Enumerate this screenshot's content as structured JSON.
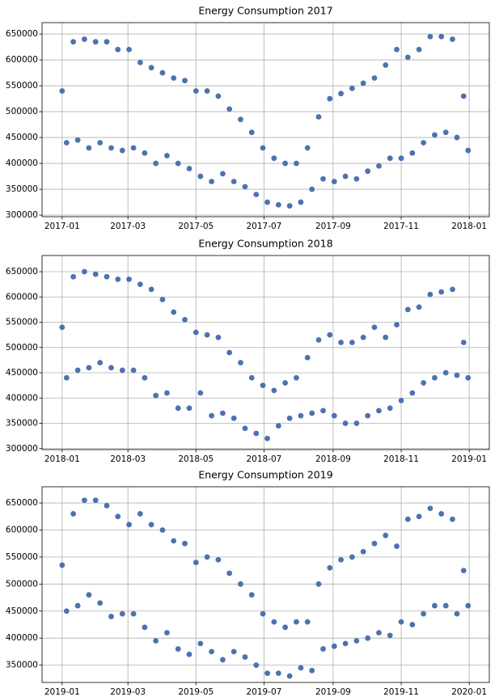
{
  "chart_data": [
    {
      "type": "scatter",
      "title": "Energy Consumption 2017",
      "grid": true,
      "xlim": [
        -18,
        383
      ],
      "ylim": [
        297000,
        672000
      ],
      "xticks": [
        {
          "value": 0,
          "label": "2017-01"
        },
        {
          "value": 59,
          "label": "2017-03"
        },
        {
          "value": 120,
          "label": "2017-05"
        },
        {
          "value": 181,
          "label": "2017-07"
        },
        {
          "value": 243,
          "label": "2017-09"
        },
        {
          "value": 304,
          "label": "2017-11"
        },
        {
          "value": 365,
          "label": "2018-01"
        }
      ],
      "yticks": [
        300000,
        350000,
        400000,
        450000,
        500000,
        550000,
        600000,
        650000
      ],
      "series": [
        {
          "color": "#4c72b0",
          "x": [
            0,
            4,
            10,
            14,
            20,
            24,
            30,
            34,
            40,
            44,
            50,
            54,
            60,
            64,
            70,
            74,
            80,
            84,
            90,
            94,
            100,
            104,
            110,
            114,
            120,
            124,
            130,
            134,
            140,
            144,
            150,
            154,
            160,
            164,
            170,
            174,
            180,
            184,
            190,
            194,
            200,
            204,
            210,
            214,
            220,
            224,
            230,
            234,
            240,
            244,
            250,
            254,
            260,
            264,
            270,
            274,
            280,
            284,
            290,
            294,
            300,
            304,
            310,
            314,
            320,
            324,
            330,
            334,
            340,
            344,
            350,
            354,
            360,
            364
          ],
          "values": [
            540000,
            440000,
            635000,
            445000,
            640000,
            430000,
            635000,
            440000,
            635000,
            430000,
            620000,
            425000,
            620000,
            430000,
            595000,
            420000,
            585000,
            400000,
            575000,
            415000,
            565000,
            400000,
            560000,
            390000,
            540000,
            375000,
            540000,
            365000,
            530000,
            380000,
            505000,
            365000,
            485000,
            355000,
            460000,
            340000,
            430000,
            325000,
            410000,
            320000,
            400000,
            318000,
            400000,
            325000,
            430000,
            350000,
            490000,
            370000,
            525000,
            365000,
            535000,
            375000,
            545000,
            370000,
            555000,
            385000,
            565000,
            395000,
            590000,
            410000,
            620000,
            410000,
            605000,
            420000,
            620000,
            440000,
            645000,
            455000,
            645000,
            460000,
            640000,
            450000,
            530000,
            425000
          ]
        }
      ]
    },
    {
      "type": "scatter",
      "title": "Energy Consumption 2018",
      "grid": true,
      "xlim": [
        -18,
        383
      ],
      "ylim": [
        298000,
        682000
      ],
      "xticks": [
        {
          "value": 0,
          "label": "2018-01"
        },
        {
          "value": 59,
          "label": "2018-03"
        },
        {
          "value": 120,
          "label": "2018-05"
        },
        {
          "value": 181,
          "label": "2018-07"
        },
        {
          "value": 243,
          "label": "2018-09"
        },
        {
          "value": 304,
          "label": "2018-11"
        },
        {
          "value": 365,
          "label": "2019-01"
        }
      ],
      "yticks": [
        300000,
        350000,
        400000,
        450000,
        500000,
        550000,
        600000,
        650000
      ],
      "series": [
        {
          "color": "#4c72b0",
          "x": [
            0,
            4,
            10,
            14,
            20,
            24,
            30,
            34,
            40,
            44,
            50,
            54,
            60,
            64,
            70,
            74,
            80,
            84,
            90,
            94,
            100,
            104,
            110,
            114,
            120,
            124,
            130,
            134,
            140,
            144,
            150,
            154,
            160,
            164,
            170,
            174,
            180,
            184,
            190,
            194,
            200,
            204,
            210,
            214,
            220,
            224,
            230,
            234,
            240,
            244,
            250,
            254,
            260,
            264,
            270,
            274,
            280,
            284,
            290,
            294,
            300,
            304,
            310,
            314,
            320,
            324,
            330,
            334,
            340,
            344,
            350,
            354,
            360,
            364
          ],
          "values": [
            540000,
            440000,
            640000,
            455000,
            650000,
            460000,
            645000,
            470000,
            640000,
            460000,
            635000,
            455000,
            635000,
            455000,
            625000,
            440000,
            615000,
            405000,
            595000,
            410000,
            570000,
            380000,
            555000,
            380000,
            530000,
            410000,
            525000,
            365000,
            520000,
            370000,
            490000,
            360000,
            470000,
            340000,
            440000,
            330000,
            425000,
            320000,
            415000,
            345000,
            430000,
            360000,
            440000,
            365000,
            480000,
            370000,
            515000,
            375000,
            525000,
            365000,
            510000,
            350000,
            510000,
            350000,
            520000,
            365000,
            540000,
            375000,
            520000,
            380000,
            545000,
            395000,
            575000,
            410000,
            580000,
            430000,
            605000,
            440000,
            610000,
            450000,
            615000,
            445000,
            510000,
            440000
          ]
        }
      ]
    },
    {
      "type": "scatter",
      "title": "Energy Consumption 2019",
      "grid": true,
      "xlim": [
        -18,
        383
      ],
      "ylim": [
        318000,
        680000
      ],
      "xticks": [
        {
          "value": 0,
          "label": "2019-01"
        },
        {
          "value": 59,
          "label": "2019-03"
        },
        {
          "value": 120,
          "label": "2019-05"
        },
        {
          "value": 181,
          "label": "2019-07"
        },
        {
          "value": 243,
          "label": "2019-09"
        },
        {
          "value": 304,
          "label": "2019-11"
        },
        {
          "value": 365,
          "label": "2020-01"
        }
      ],
      "yticks": [
        350000,
        400000,
        450000,
        500000,
        550000,
        600000,
        650000
      ],
      "series": [
        {
          "color": "#4c72b0",
          "x": [
            0,
            4,
            10,
            14,
            20,
            24,
            30,
            34,
            40,
            44,
            50,
            54,
            60,
            64,
            70,
            74,
            80,
            84,
            90,
            94,
            100,
            104,
            110,
            114,
            120,
            124,
            130,
            134,
            140,
            144,
            150,
            154,
            160,
            164,
            170,
            174,
            180,
            184,
            190,
            194,
            200,
            204,
            210,
            214,
            220,
            224,
            230,
            234,
            240,
            244,
            250,
            254,
            260,
            264,
            270,
            274,
            280,
            284,
            290,
            294,
            300,
            304,
            310,
            314,
            320,
            324,
            330,
            334,
            340,
            344,
            350,
            354,
            360,
            364
          ],
          "values": [
            535000,
            450000,
            630000,
            460000,
            655000,
            480000,
            655000,
            465000,
            645000,
            440000,
            625000,
            445000,
            610000,
            445000,
            630000,
            420000,
            610000,
            395000,
            600000,
            410000,
            580000,
            380000,
            575000,
            370000,
            540000,
            390000,
            550000,
            375000,
            545000,
            360000,
            520000,
            375000,
            500000,
            365000,
            480000,
            350000,
            445000,
            335000,
            430000,
            335000,
            420000,
            330000,
            430000,
            345000,
            430000,
            340000,
            500000,
            380000,
            530000,
            385000,
            545000,
            390000,
            550000,
            395000,
            560000,
            400000,
            575000,
            410000,
            590000,
            405000,
            570000,
            430000,
            620000,
            425000,
            625000,
            445000,
            640000,
            460000,
            630000,
            460000,
            620000,
            445000,
            525000,
            460000
          ]
        }
      ]
    }
  ]
}
